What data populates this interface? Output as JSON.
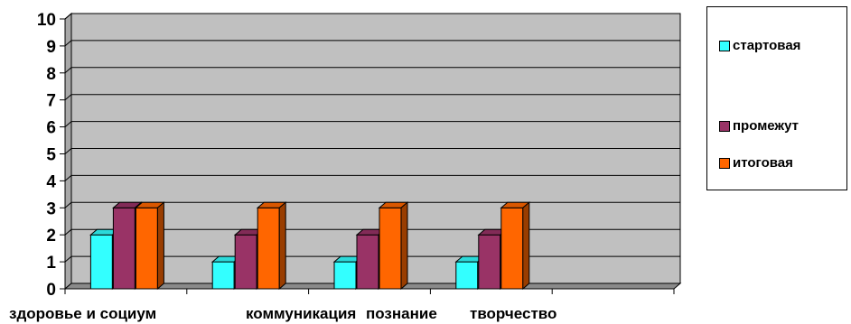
{
  "chart_data": {
    "type": "bar",
    "title": "",
    "xlabel": "",
    "ylabel": "",
    "ylim": [
      0,
      10
    ],
    "yticks": [
      "0",
      "1",
      "2",
      "3",
      "4",
      "5",
      "6",
      "7",
      "8",
      "9",
      "10"
    ],
    "grid": true,
    "legend_position": "right",
    "categories": [
      "здоровье и социум",
      "коммуникация",
      "познание",
      "творчество",
      ""
    ],
    "series": [
      {
        "name": "стартовая",
        "color": "#33ffff",
        "values": [
          2,
          1,
          1,
          1,
          null
        ]
      },
      {
        "name": "промежут",
        "color": "#993366",
        "values": [
          3,
          2,
          2,
          2,
          null
        ]
      },
      {
        "name": "итоговая",
        "color": "#ff6600",
        "values": [
          3,
          3,
          3,
          3,
          null
        ]
      }
    ],
    "plot_color": "#c0c0c0"
  }
}
